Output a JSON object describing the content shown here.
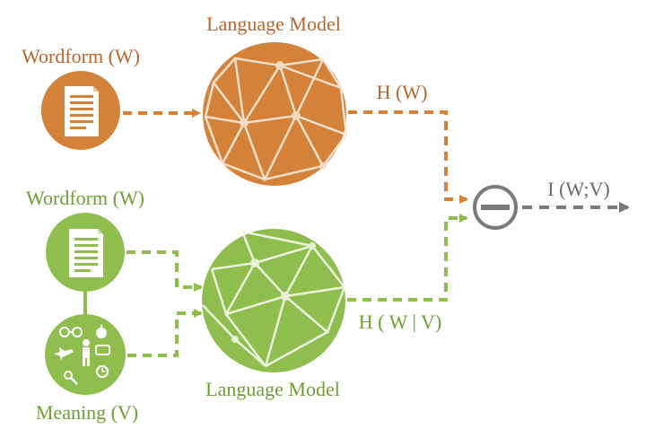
{
  "labels": {
    "top_model": "Language Model",
    "top_wordform": "Wordform (W)",
    "top_output": "H (W)",
    "bottom_wordform": "Wordform (W)",
    "bottom_meaning": "Meaning (V)",
    "bottom_model": "Language Model",
    "bottom_output": "H ( W | V)",
    "result": "I (W;V)"
  },
  "colors": {
    "orange": "#d4823a",
    "orange_text": "#b8662a",
    "green": "#8fbe4f",
    "green_text": "#6f9e35",
    "gray": "#7a7a7a",
    "net_line": "#f5ead9"
  },
  "icons": {
    "top_wordform": "document-icon",
    "bottom_wordform": "document-icon",
    "meaning": "meaning-symbols-icon",
    "model": "network-icon",
    "operator": "minus-icon"
  }
}
